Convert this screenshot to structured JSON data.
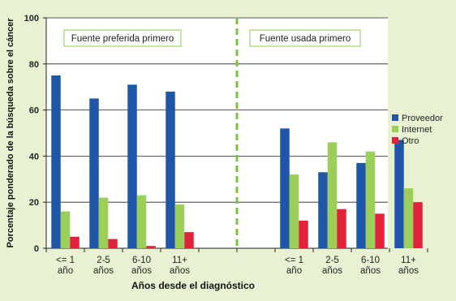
{
  "chart_data": {
    "type": "bar",
    "ylabel": "Porcentaje ponderado de la búsqueda sobre el cáncer",
    "xlabel": "Años desde el diagnóstico",
    "ylim": [
      0,
      100
    ],
    "yticks": [
      0,
      20,
      40,
      60,
      80,
      100
    ],
    "grid": true,
    "legend_position": "right",
    "panels": [
      {
        "label": "Fuente preferida primero",
        "categories": [
          [
            "<= 1",
            "año"
          ],
          [
            "2-5",
            "años"
          ],
          [
            "6-10",
            "años"
          ],
          [
            "11+",
            "años"
          ]
        ]
      },
      {
        "label": "Fuente usada primero",
        "categories": [
          [
            "<= 1",
            "año"
          ],
          [
            "2-5",
            "años"
          ],
          [
            "6-10",
            "años"
          ],
          [
            "11+",
            "años"
          ]
        ]
      }
    ],
    "series": [
      {
        "name": "Proveedor",
        "color": "#1f56a8",
        "values": [
          75,
          65,
          71,
          68,
          52,
          33,
          37,
          47
        ]
      },
      {
        "name": "Internet",
        "color": "#9bcf5a",
        "values": [
          16,
          22,
          23,
          19,
          32,
          46,
          42,
          26
        ]
      },
      {
        "name": "Otro",
        "color": "#e2213a",
        "values": [
          5,
          4,
          1,
          7,
          12,
          17,
          15,
          20
        ]
      }
    ]
  }
}
